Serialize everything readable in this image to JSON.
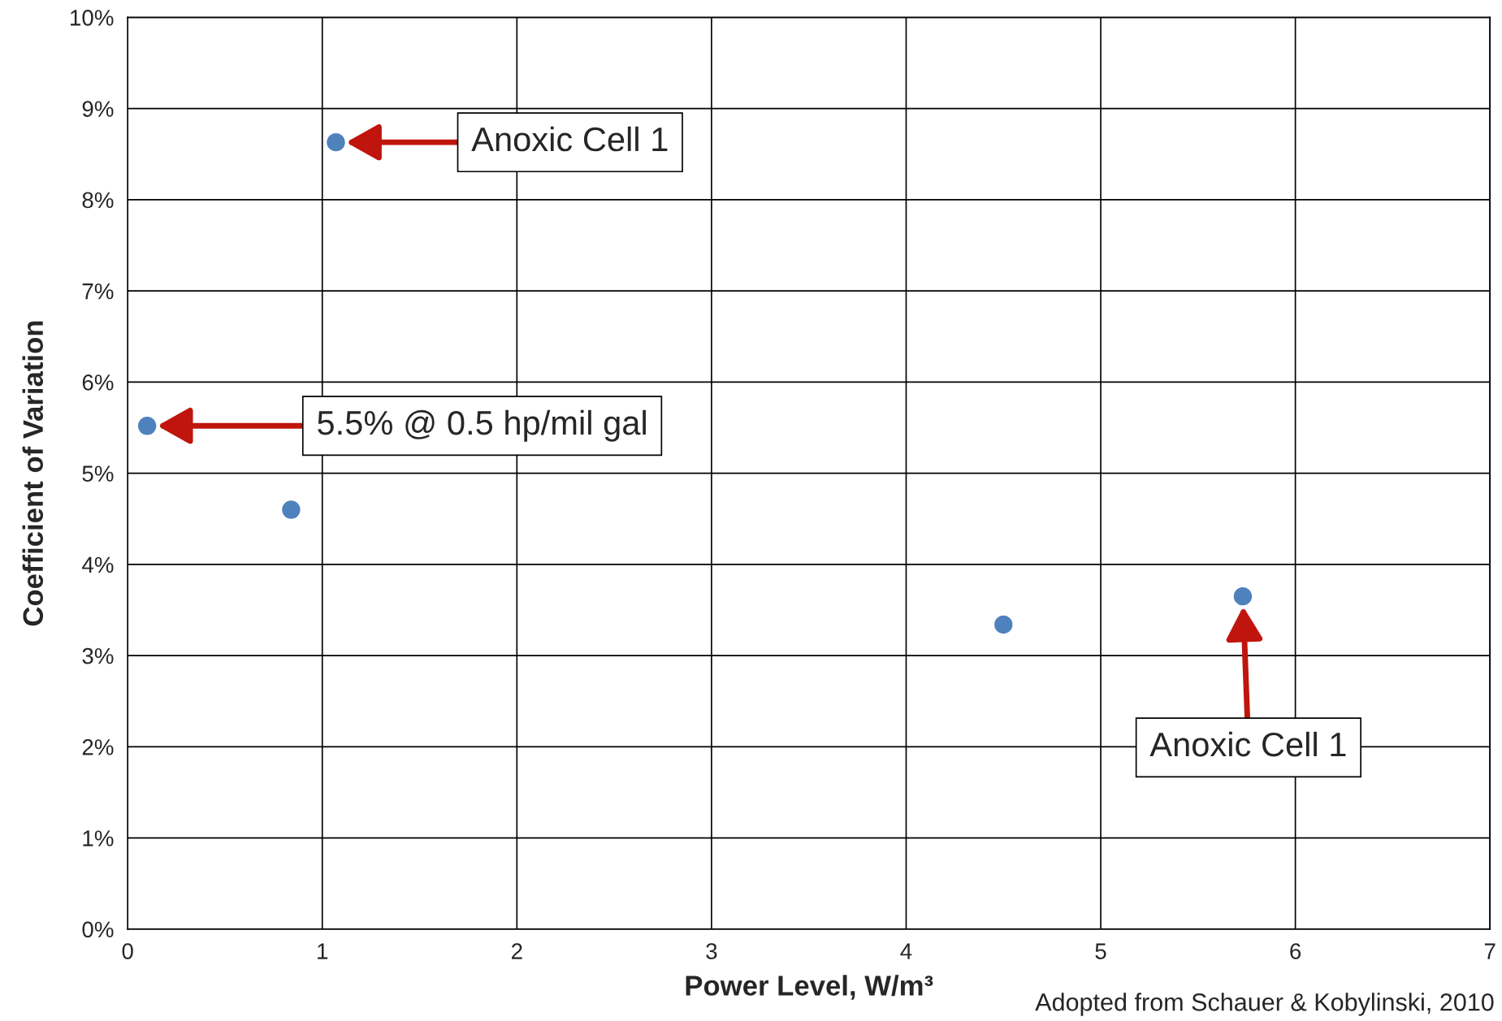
{
  "chart_data": {
    "type": "scatter",
    "xlabel": "Power Level, W/m³",
    "ylabel": "Coefficient of Variation",
    "x": [
      0.1,
      0.84,
      1.07,
      4.5,
      5.73
    ],
    "series": [
      {
        "color": "#4f81bd",
        "values": [
          5.52,
          4.6,
          8.63,
          3.34,
          3.65
        ]
      }
    ],
    "marker": "circle",
    "grid": true,
    "xlim": [
      0,
      7
    ],
    "xticks": [
      0,
      1,
      2,
      3,
      4,
      5,
      6,
      7
    ],
    "ylim": [
      0,
      10
    ],
    "yticks": [
      {
        "value": 0,
        "label": "0%"
      },
      {
        "value": 1,
        "label": "1%"
      },
      {
        "value": 2,
        "label": "2%"
      },
      {
        "value": 3,
        "label": "3%"
      },
      {
        "value": 4,
        "label": "4%"
      },
      {
        "value": 5,
        "label": "5%"
      },
      {
        "value": 6,
        "label": "6%"
      },
      {
        "value": 7,
        "label": "7%"
      },
      {
        "value": 8,
        "label": "8%"
      },
      {
        "value": 9,
        "label": "9%"
      },
      {
        "value": 10,
        "label": "10%"
      }
    ],
    "annotations": [
      "Anoxic Cell 1",
      "5.5% @ 0.5 hp/mil gal",
      "Anoxic Cell 1",
      "Adopted from Schauer & Kobylinski, 2010"
    ]
  }
}
